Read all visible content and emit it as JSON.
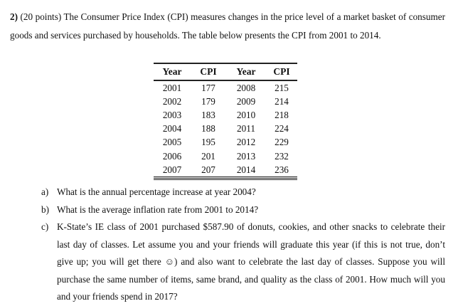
{
  "problem": {
    "number": "2)",
    "intro": "(20 points) The Consumer Price Index (CPI) measures changes in the price level of a market basket of consumer goods and services purchased by households. The table below presents the CPI from 2001 to 2014."
  },
  "table": {
    "headers": [
      "Year",
      "CPI",
      "Year",
      "CPI"
    ],
    "rows": [
      [
        "2001",
        "177",
        "2008",
        "215"
      ],
      [
        "2002",
        "179",
        "2009",
        "214"
      ],
      [
        "2003",
        "183",
        "2010",
        "218"
      ],
      [
        "2004",
        "188",
        "2011",
        "224"
      ],
      [
        "2005",
        "195",
        "2012",
        "229"
      ],
      [
        "2006",
        "201",
        "2013",
        "232"
      ],
      [
        "2007",
        "207",
        "2014",
        "236"
      ]
    ]
  },
  "questions": [
    {
      "label": "a)",
      "text": "What is the annual percentage increase at year 2004?"
    },
    {
      "label": "b)",
      "text": "What is the average inflation rate from 2001 to 2014?"
    },
    {
      "label": "c)",
      "text": "K-State’s IE class of 2001 purchased $587.90 of donuts, cookies, and other snacks to celebrate their last day of classes. Let assume you and your friends will graduate this year (if this is not true, don’t give up; you will get there ☺) and also want to celebrate the last day of classes. Suppose you will purchase the same number of items, same brand, and quality as the class of 2001. How much will you and your friends spend in 2017?"
    }
  ]
}
